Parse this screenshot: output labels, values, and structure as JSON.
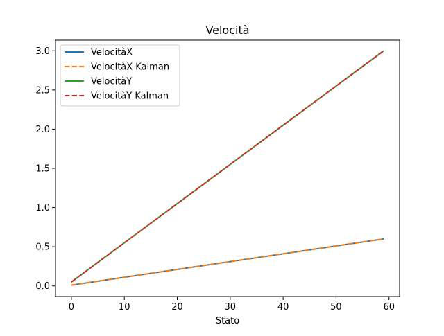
{
  "chart_data": {
    "type": "line",
    "title": "Velocità",
    "xlabel": "Stato",
    "ylabel": "",
    "xlim": [
      -3,
      62
    ],
    "ylim": [
      -0.135,
      3.135
    ],
    "x_ticks": [
      0,
      10,
      20,
      30,
      40,
      50,
      60
    ],
    "x_tick_labels": [
      "0",
      "10",
      "20",
      "30",
      "40",
      "50",
      "60"
    ],
    "y_ticks": [
      0.0,
      0.5,
      1.0,
      1.5,
      2.0,
      2.5,
      3.0
    ],
    "y_tick_labels": [
      "0.0",
      "0.5",
      "1.0",
      "1.5",
      "2.0",
      "2.5",
      "3.0"
    ],
    "grid": false,
    "legend_position": "top-left",
    "series": [
      {
        "name": "VelocitàX",
        "color": "#1f77b4",
        "style": "solid",
        "x": [
          0,
          59
        ],
        "y": [
          0.01,
          0.6
        ]
      },
      {
        "name": "VelocitàX Kalman",
        "color": "#ff7f0e",
        "style": "dashed",
        "x": [
          0,
          59
        ],
        "y": [
          0.01,
          0.6
        ]
      },
      {
        "name": "VelocitàY",
        "color": "#2ca02c",
        "style": "solid",
        "x": [
          0,
          59
        ],
        "y": [
          0.05,
          3.0
        ]
      },
      {
        "name": "VelocitàY Kalman",
        "color": "#d62728",
        "style": "dashed",
        "x": [
          0,
          59
        ],
        "y": [
          0.05,
          3.0
        ]
      }
    ]
  }
}
